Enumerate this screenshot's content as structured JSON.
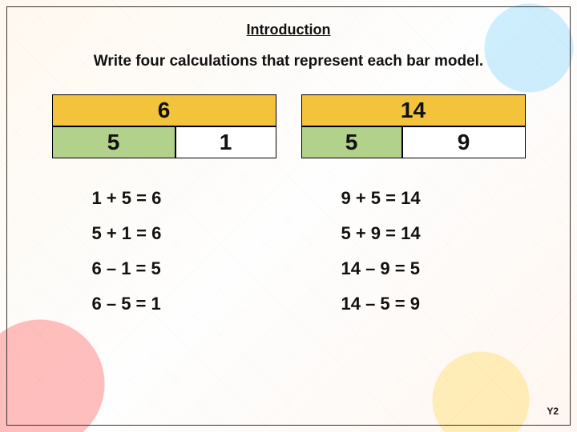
{
  "title": "Introduction",
  "instruction": "Write four calculations that represent each bar model.",
  "footer": "Y2",
  "colors": {
    "whole_fill": "#f3c33c",
    "part_left_fill": "#b2d18a",
    "part_right_fill": "#ffffff",
    "border": "#000000",
    "text": "#111111"
  },
  "models": [
    {
      "whole": "6",
      "parts": [
        {
          "value": "5",
          "width_pct": 55
        },
        {
          "value": "1",
          "width_pct": 45
        }
      ],
      "calculations": [
        "1 + 5 = 6",
        "5 + 1 = 6",
        "6 – 1 = 5",
        "6 – 5 = 1"
      ]
    },
    {
      "whole": "14",
      "parts": [
        {
          "value": "5",
          "width_pct": 45
        },
        {
          "value": "9",
          "width_pct": 55
        }
      ],
      "calculations": [
        "9 + 5 = 14",
        "5 + 9 = 14",
        "14 – 9 = 5",
        "14 – 5 = 9"
      ]
    }
  ]
}
